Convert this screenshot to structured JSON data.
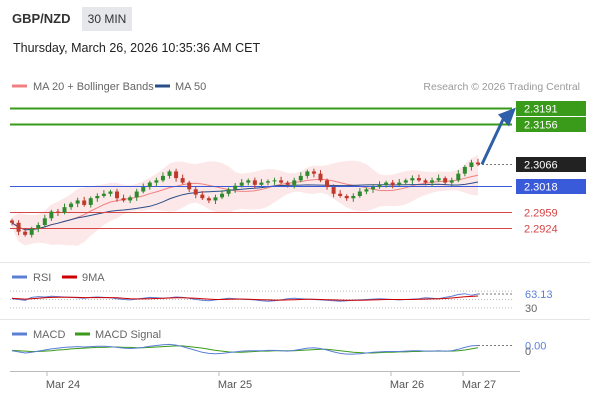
{
  "header": {
    "symbol": "GBP/NZD",
    "timeframe": "30 MIN",
    "datetime": "Thursday, March 26, 2026 10:35:36 AM CET"
  },
  "colors": {
    "bollinger": "#f08080",
    "ma50": "#2a4e8a",
    "resistance": "#3a9a1a",
    "support": "#d64545",
    "pivot": "#3a5bd9",
    "current": "#222222",
    "arrow": "#2e5fa8",
    "rsi": "#5b7fd6",
    "rsi_ma": "#cc0000",
    "macd": "#5b7fd6",
    "macd_signal": "#3a9a1a",
    "candle_up": "#2f8a2f",
    "candle_down": "#c0392b"
  },
  "chart_data": [
    {
      "type": "candlestick",
      "legend": [
        "MA 20 + Bollinger Bands",
        "MA 50"
      ],
      "legend_placement": "top-left",
      "credit": "Research © 2026 Trading Central",
      "x_ticks": [
        "Mar 24",
        "Mar 25",
        "Mar 26",
        "Mar 27"
      ],
      "y_range": [
        2.2874,
        2.321
      ],
      "levels": [
        {
          "value": 2.3191,
          "label": "2.3191",
          "kind": "resistance"
        },
        {
          "value": 2.3156,
          "label": "2.3156",
          "kind": "resistance"
        },
        {
          "value": 2.3066,
          "label": "2.3066",
          "kind": "current"
        },
        {
          "value": 2.3018,
          "label": "2.3018",
          "kind": "pivot"
        },
        {
          "value": 2.2959,
          "label": "2.2959",
          "kind": "support"
        },
        {
          "value": 2.2924,
          "label": "2.2924",
          "kind": "support"
        }
      ],
      "projection": {
        "from": 2.3066,
        "to": 2.3191
      },
      "close_series": [
        2.2935,
        2.2915,
        2.2908,
        2.2922,
        2.293,
        2.2945,
        2.296,
        2.2958,
        2.297,
        2.2978,
        2.2985,
        2.2975,
        2.299,
        2.2995,
        2.3,
        2.3005,
        2.299,
        2.2985,
        2.2992,
        2.3005,
        2.3015,
        2.3025,
        2.303,
        2.304,
        2.305,
        2.3035,
        2.3025,
        2.301,
        2.2998,
        2.299,
        2.2985,
        2.2992,
        2.3,
        2.301,
        2.3018,
        2.3025,
        2.303,
        2.302,
        2.3025,
        2.3028,
        2.303,
        2.3025,
        2.302,
        2.303,
        2.304,
        2.305,
        2.3045,
        2.303,
        2.3015,
        2.3,
        2.2995,
        2.299,
        2.2995,
        2.3005,
        2.301,
        2.3015,
        2.302,
        2.3025,
        2.302,
        2.3025,
        2.303,
        2.3035,
        2.303,
        2.3025,
        2.303,
        2.3035,
        2.3025,
        2.303,
        2.3045,
        2.306,
        2.307,
        2.3066
      ]
    },
    {
      "type": "line",
      "legend": [
        "RSI",
        "9MA"
      ],
      "y_range": [
        20,
        80
      ],
      "levels": [
        {
          "value": 63.13,
          "label": "63.13",
          "kind": "current"
        },
        {
          "value": 50,
          "label": "",
          "kind": "guide"
        },
        {
          "value": 30,
          "label": "30",
          "kind": "guide"
        }
      ],
      "rsi": [
        52,
        50,
        48,
        55,
        57,
        56,
        58,
        57,
        56,
        55,
        54,
        53,
        55,
        56,
        55,
        54,
        52,
        50,
        49,
        51,
        53,
        55,
        54,
        53,
        54,
        56,
        55,
        53,
        50,
        48,
        47,
        49,
        51,
        53,
        52,
        51,
        50,
        49,
        47,
        46,
        47,
        49,
        52,
        53,
        52,
        51,
        50,
        49,
        48,
        47,
        46,
        47,
        48,
        49,
        50,
        51,
        52,
        51,
        50,
        49,
        50,
        51,
        52,
        54,
        53,
        52,
        55,
        58,
        62,
        64,
        60,
        63.13
      ],
      "rsi_ma": [
        53,
        52,
        51,
        52,
        53,
        54,
        55,
        55.5,
        55.5,
        55.5,
        55,
        54.5,
        54.5,
        54.5,
        54.5,
        54.5,
        54,
        53,
        52,
        51.5,
        51.5,
        52,
        52.5,
        53,
        53.5,
        54,
        54,
        53.5,
        53,
        52,
        51,
        50,
        50,
        50.5,
        51,
        51,
        50.5,
        50,
        49.5,
        49,
        48.5,
        48.5,
        49,
        49.5,
        50,
        50.5,
        50.5,
        50,
        49.5,
        49,
        48.5,
        48,
        48,
        48,
        48.5,
        49,
        49.5,
        50,
        50,
        50,
        50,
        50,
        50.5,
        51,
        51.5,
        52,
        52.5,
        53.5,
        55,
        56.5,
        57.5,
        58.5
      ]
    },
    {
      "type": "line",
      "legend": [
        "MACD",
        "MACD Signal"
      ],
      "y_range": [
        -0.0045,
        0.0035
      ],
      "levels": [
        {
          "value": 0.0015,
          "label": "0.00",
          "kind": "current"
        },
        {
          "value": 0,
          "label": "0",
          "kind": "guide"
        }
      ],
      "macd": [
        0.0001,
        -0.0002,
        -0.0005,
        -0.0003,
        0.0,
        0.0003,
        0.0006,
        0.0008,
        0.001,
        0.0011,
        0.0012,
        0.0011,
        0.0012,
        0.0013,
        0.0013,
        0.0012,
        0.001,
        0.0008,
        0.0007,
        0.0008,
        0.001,
        0.0013,
        0.0015,
        0.0017,
        0.0018,
        0.0016,
        0.0012,
        0.0007,
        0.0002,
        -0.0003,
        -0.0006,
        -0.0007,
        -0.0006,
        -0.0004,
        -0.0002,
        0.0,
        0.0001,
        0.0001,
        0.0001,
        0.0002,
        0.0002,
        0.0001,
        0.0,
        0.0002,
        0.0005,
        0.0008,
        0.0009,
        0.0007,
        0.0003,
        -0.0002,
        -0.0006,
        -0.0008,
        -0.0008,
        -0.0007,
        -0.0005,
        -0.0003,
        -0.0002,
        -0.0001,
        -0.0001,
        -0.0001,
        0.0,
        0.0001,
        0.0001,
        0.0,
        0.0,
        0.0001,
        0.0,
        0.0001,
        0.0005,
        0.001,
        0.0014,
        0.0015
      ],
      "signal": [
        0.0002,
        0.0001,
        0.0,
        -0.0001,
        -0.0001,
        0.0,
        0.0001,
        0.0003,
        0.0004,
        0.0006,
        0.0007,
        0.0008,
        0.0009,
        0.001,
        0.001,
        0.0011,
        0.0011,
        0.001,
        0.001,
        0.0009,
        0.0009,
        0.001,
        0.0011,
        0.0012,
        0.0013,
        0.0014,
        0.0014,
        0.0012,
        0.001,
        0.0008,
        0.0005,
        0.0002,
        0.0,
        -0.0002,
        -0.0003,
        -0.0003,
        -0.0002,
        -0.0001,
        0.0,
        0.0,
        0.0001,
        0.0001,
        0.0001,
        0.0001,
        0.0002,
        0.0003,
        0.0004,
        0.0005,
        0.0005,
        0.0003,
        0.0001,
        -0.0001,
        -0.0003,
        -0.0004,
        -0.0005,
        -0.0005,
        -0.0004,
        -0.0003,
        -0.0003,
        -0.0002,
        -0.0002,
        -0.0001,
        -0.0001,
        0.0,
        0.0,
        0.0,
        0.0,
        0.0,
        0.0001,
        0.0003,
        0.0006,
        0.0009
      ]
    }
  ]
}
